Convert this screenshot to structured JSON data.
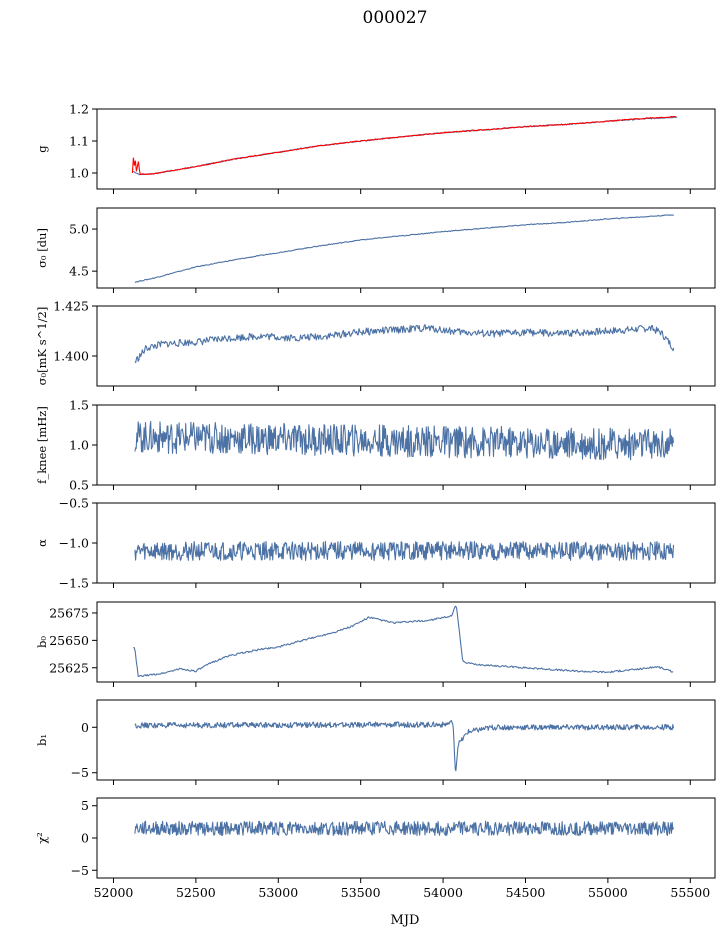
{
  "figure": {
    "title": "000027",
    "xlabel": "MJD"
  },
  "colors": {
    "series": "#4c72a5",
    "overlay": "#ff0000"
  },
  "x_axis": {
    "xlim": [
      51900,
      55650
    ],
    "ticks": [
      52000,
      52500,
      53000,
      53500,
      54000,
      54500,
      55000,
      55500
    ]
  },
  "chart_data": [
    {
      "type": "line",
      "ylabel": "g",
      "ylim": [
        0.95,
        1.2
      ],
      "yticks": [
        1.0,
        1.1,
        1.2
      ],
      "ytick_labels": [
        "1.0",
        "1.1",
        "1.2"
      ],
      "series": [
        {
          "x": [
            52120,
            52160,
            52250,
            52500,
            52750,
            53000,
            53250,
            53500,
            53750,
            54000,
            54250,
            54500,
            54750,
            55000,
            55250,
            55420
          ],
          "values": [
            1.005,
            0.995,
            0.998,
            1.02,
            1.045,
            1.065,
            1.085,
            1.1,
            1.113,
            1.126,
            1.135,
            1.145,
            1.152,
            1.162,
            1.17,
            1.175
          ]
        },
        {
          "x": [
            52115,
            52120,
            52125,
            52130,
            52140,
            52150,
            52160,
            52250,
            52500,
            52750,
            53000,
            53250,
            53500,
            53750,
            54000,
            54250,
            54500,
            54750,
            55000,
            55250,
            55420
          ],
          "values": [
            1.0,
            1.06,
            1.0,
            1.055,
            1.0,
            1.04,
            0.996,
            0.998,
            1.02,
            1.045,
            1.065,
            1.085,
            1.1,
            1.113,
            1.126,
            1.135,
            1.145,
            1.152,
            1.162,
            1.172,
            1.176
          ]
        }
      ]
    },
    {
      "type": "line",
      "ylabel": "σ₀ [du]",
      "ylim": [
        4.3,
        5.25
      ],
      "yticks": [
        4.5,
        5.0
      ],
      "ytick_labels": [
        "4.5",
        "5.0"
      ],
      "series": [
        {
          "x": [
            52130,
            52250,
            52500,
            52750,
            53000,
            53250,
            53500,
            53750,
            54000,
            54250,
            54500,
            54750,
            55000,
            55250,
            55400
          ],
          "values": [
            4.37,
            4.42,
            4.55,
            4.64,
            4.72,
            4.8,
            4.87,
            4.92,
            4.97,
            5.01,
            5.05,
            5.08,
            5.12,
            5.15,
            5.17
          ]
        }
      ]
    },
    {
      "type": "line",
      "ylabel": "σ₀[mK s^1/2]",
      "ylim": [
        1.385,
        1.425
      ],
      "yticks": [
        1.4,
        1.425
      ],
      "ytick_labels": [
        "1.400",
        "1.425"
      ],
      "series": [
        {
          "x": [
            52130,
            52150,
            52200,
            52300,
            52500,
            52700,
            52900,
            53100,
            53300,
            53500,
            53700,
            53900,
            54100,
            54300,
            54500,
            54700,
            54900,
            55100,
            55250,
            55320,
            55400
          ],
          "values": [
            1.397,
            1.399,
            1.404,
            1.406,
            1.407,
            1.409,
            1.41,
            1.409,
            1.41,
            1.412,
            1.413,
            1.414,
            1.412,
            1.411,
            1.412,
            1.411,
            1.412,
            1.413,
            1.414,
            1.412,
            1.404
          ]
        }
      ]
    },
    {
      "type": "line",
      "ylabel": "f_knee [mHz]",
      "ylim": [
        0.5,
        1.5
      ],
      "yticks": [
        0.5,
        1.0,
        1.5
      ],
      "ytick_labels": [
        "0.5",
        "1.0",
        "1.5"
      ],
      "series": [
        {
          "x": [
            52130,
            55400
          ],
          "values": [
            1.1,
            1.0
          ]
        }
      ]
    },
    {
      "type": "line",
      "ylabel": "α",
      "ylim": [
        -1.5,
        -0.5
      ],
      "yticks": [
        -1.5,
        -1.0,
        -0.5
      ],
      "ytick_labels": [
        "−1.5",
        "−1.0",
        "−0.5"
      ],
      "series": [
        {
          "x": [
            52130,
            55400
          ],
          "values": [
            -1.1,
            -1.1
          ]
        }
      ]
    },
    {
      "type": "line",
      "ylabel": "b₀",
      "ylim": [
        25612,
        25685
      ],
      "yticks": [
        25625,
        25650,
        25675
      ],
      "ytick_labels": [
        "25625",
        "25650",
        "25675"
      ],
      "series": [
        {
          "x": [
            52120,
            52130,
            52150,
            52300,
            52400,
            52500,
            52600,
            52700,
            52900,
            53000,
            53200,
            53350,
            53450,
            53550,
            53700,
            53900,
            54050,
            54080,
            54120,
            54200,
            54400,
            54600,
            54800,
            55000,
            55200,
            55300,
            55400
          ],
          "values": [
            25644,
            25642,
            25617,
            25620,
            25624,
            25622,
            25630,
            25636,
            25642,
            25644,
            25652,
            25658,
            25663,
            25671,
            25666,
            25668,
            25672,
            25683,
            25630,
            25628,
            25626,
            25624,
            25622,
            25621,
            25624,
            25626,
            25621
          ]
        }
      ]
    },
    {
      "type": "line",
      "ylabel": "b₁",
      "ylim": [
        -5.8,
        3.0
      ],
      "yticks": [
        -5,
        0
      ],
      "ytick_labels": [
        "−5",
        "0"
      ],
      "series": [
        {
          "x": [
            52130,
            54000,
            54060,
            54075,
            54090,
            54150,
            54300,
            55400
          ],
          "values": [
            0.2,
            0.3,
            0.5,
            -5.3,
            -2.0,
            -0.5,
            0.0,
            0.0
          ]
        }
      ]
    },
    {
      "type": "line",
      "ylabel": "χ²",
      "ylim": [
        -6.2,
        6.2
      ],
      "yticks": [
        -5,
        0,
        5
      ],
      "ytick_labels": [
        "−5",
        "0",
        "5"
      ],
      "series": [
        {
          "x": [
            52130,
            55400
          ],
          "values": [
            1.5,
            1.5
          ]
        }
      ]
    }
  ]
}
